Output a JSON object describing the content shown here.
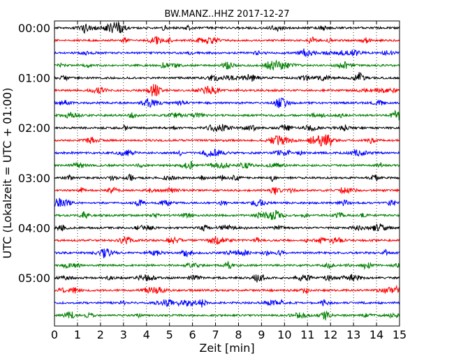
{
  "chart_data": {
    "type": "line",
    "title": "BW.MANZ..HHZ 2017-12-27",
    "xlabel": "Zeit  [min]",
    "ylabel": "UTC (Lokalzeit = UTC + 01:00)",
    "xlim": [
      0,
      15
    ],
    "x_ticks": [
      "0",
      "1",
      "2",
      "3",
      "4",
      "5",
      "6",
      "7",
      "8",
      "9",
      "10",
      "11",
      "12",
      "13",
      "14",
      "15"
    ],
    "y_tick_labels": [
      "00:00",
      "01:00",
      "02:00",
      "03:00",
      "04:00",
      "05:00"
    ],
    "traces_per_hour": 4,
    "trace_minutes": 15,
    "n_traces": 24,
    "trace_colors": [
      "#000000",
      "#ff0000",
      "#0000ff",
      "#008000"
    ],
    "grid": "vertical dotted at each minute"
  }
}
